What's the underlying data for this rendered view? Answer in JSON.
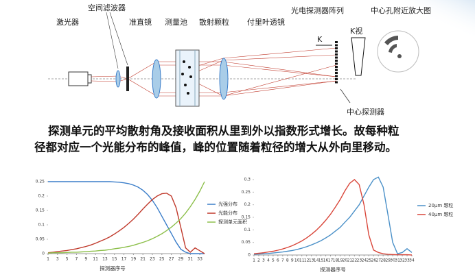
{
  "diagram": {
    "labels": [
      "激光器",
      "空间滤波器",
      "准直镜",
      "测量池",
      "散射颗粒",
      "付里叶透镜",
      "光电探测器阵列",
      "中心孔附近放大图",
      "K",
      "K视",
      "中心探测器"
    ]
  },
  "caption": {
    "lines": [
      "探测单元的平均散射角及接收面积从里到外以指数形式增长。故每种粒",
      "径都对应一个光能分布的峰值，峰的位置随着粒径的增大从外向里移动。"
    ]
  },
  "chart_data": [
    {
      "type": "line",
      "x_label": "探测器序号",
      "x": [
        1,
        2,
        3,
        4,
        5,
        6,
        7,
        8,
        9,
        10,
        11,
        12,
        13,
        14,
        15,
        16,
        17,
        18,
        19,
        20,
        21,
        22,
        23,
        24,
        25,
        26,
        27,
        28,
        29,
        30,
        31,
        32,
        33,
        34
      ],
      "xlim": [
        1,
        34
      ],
      "xticks": [
        1,
        3,
        5,
        7,
        9,
        11,
        13,
        15,
        17,
        19,
        21,
        23,
        25,
        27,
        29,
        31,
        33
      ],
      "ylim": [
        0,
        0.25
      ],
      "yticks": [
        0,
        0.05,
        0.1,
        0.15,
        0.2,
        0.25
      ],
      "series": [
        {
          "name": "光强分布",
          "color": "#3a7dc9",
          "values": [
            0.25,
            0.25,
            0.25,
            0.25,
            0.25,
            0.25,
            0.25,
            0.25,
            0.25,
            0.25,
            0.25,
            0.25,
            0.25,
            0.25,
            0.249,
            0.248,
            0.246,
            0.243,
            0.238,
            0.231,
            0.22,
            0.205,
            0.185,
            0.16,
            0.13,
            0.1,
            0.07,
            0.04,
            0.015,
            0.005,
            0,
            0,
            0,
            0
          ]
        },
        {
          "name": "光能分布",
          "color": "#c0392b",
          "values": [
            0.003,
            0.005,
            0.007,
            0.009,
            0.011,
            0.014,
            0.017,
            0.021,
            0.025,
            0.03,
            0.036,
            0.043,
            0.05,
            0.058,
            0.068,
            0.079,
            0.091,
            0.105,
            0.12,
            0.137,
            0.155,
            0.172,
            0.188,
            0.2,
            0.208,
            0.21,
            0.2,
            0.16,
            0.09,
            0.02,
            0.005,
            0.02,
            0.01,
            0
          ]
        },
        {
          "name": "探测单元面积",
          "color": "#8cbf4a",
          "values": [
            0.002,
            0.003,
            0.003,
            0.003,
            0.004,
            0.005,
            0.005,
            0.006,
            0.007,
            0.008,
            0.009,
            0.011,
            0.012,
            0.014,
            0.017,
            0.019,
            0.022,
            0.025,
            0.029,
            0.034,
            0.039,
            0.045,
            0.052,
            0.06,
            0.069,
            0.08,
            0.092,
            0.106,
            0.122,
            0.141,
            0.163,
            0.188,
            0.217,
            0.25
          ]
        }
      ]
    },
    {
      "type": "line",
      "x_label": "探测器序号",
      "x": [
        1,
        2,
        3,
        4,
        5,
        6,
        7,
        8,
        9,
        10,
        11,
        12,
        13,
        14,
        15,
        16,
        17,
        18,
        19,
        20,
        21,
        22,
        23,
        24,
        25,
        26,
        27,
        28,
        29,
        30,
        31,
        32,
        33,
        34
      ],
      "xlim": [
        1,
        34
      ],
      "xticks": [
        1,
        2,
        3,
        4,
        5,
        6,
        7,
        8,
        9,
        10,
        11,
        12,
        13,
        14,
        15,
        16,
        17,
        18,
        19,
        20,
        21,
        22,
        23,
        24,
        25,
        26,
        27,
        28,
        29,
        30,
        31,
        32,
        33,
        34
      ],
      "ylim": [
        0,
        0.3
      ],
      "yticks": [
        0,
        0.05,
        0.1,
        0.15,
        0.2,
        0.25,
        0.3
      ],
      "series": [
        {
          "name": "20μm 颗粒",
          "color": "#4a90c8",
          "values": [
            0.003,
            0.004,
            0.005,
            0.006,
            0.008,
            0.01,
            0.012,
            0.015,
            0.018,
            0.022,
            0.027,
            0.033,
            0.04,
            0.048,
            0.057,
            0.068,
            0.08,
            0.095,
            0.11,
            0.13,
            0.15,
            0.175,
            0.2,
            0.235,
            0.27,
            0.3,
            0.31,
            0.27,
            0.16,
            0.05,
            0.005,
            0.01,
            0.025,
            0.01
          ]
        },
        {
          "name": "40μm 颗粒",
          "color": "#d9463a",
          "values": [
            0.005,
            0.007,
            0.009,
            0.012,
            0.015,
            0.019,
            0.024,
            0.03,
            0.037,
            0.046,
            0.056,
            0.068,
            0.082,
            0.098,
            0.117,
            0.138,
            0.162,
            0.19,
            0.22,
            0.255,
            0.285,
            0.3,
            0.28,
            0.2,
            0.08,
            0.02,
            0.01,
            0.005,
            0.003,
            0.002,
            0.001,
            0.001,
            0.001,
            0
          ]
        }
      ]
    }
  ]
}
